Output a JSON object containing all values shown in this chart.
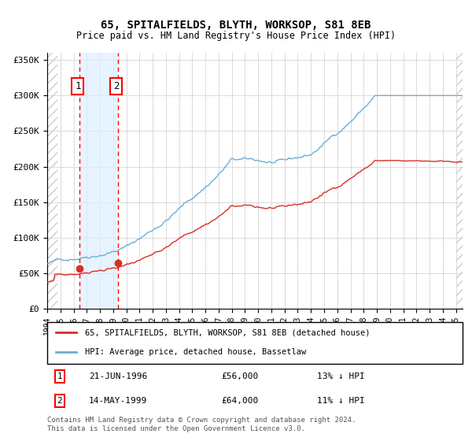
{
  "title1": "65, SPITALFIELDS, BLYTH, WORKSOP, S81 8EB",
  "title2": "Price paid vs. HM Land Registry's House Price Index (HPI)",
  "sale1_date": "21-JUN-1996",
  "sale1_price": 56000,
  "sale1_label": "1",
  "sale1_year": 1996.47,
  "sale2_date": "14-MAY-1999",
  "sale2_price": 64000,
  "sale2_label": "2",
  "sale2_year": 1999.37,
  "legend_line1": "65, SPITALFIELDS, BLYTH, WORKSOP, S81 8EB (detached house)",
  "legend_line2": "HPI: Average price, detached house, Bassetlaw",
  "table_row1": "1    21-JUN-1996    £56,000    13% ↓ HPI",
  "table_row2": "2    14-MAY-1999    £64,000    11% ↓ HPI",
  "footer": "Contains HM Land Registry data © Crown copyright and database right 2024.\nThis data is licensed under the Open Government Licence v3.0.",
  "xmin": 1994.0,
  "xmax": 2025.5,
  "ymin": 0,
  "ymax": 360000,
  "hpi_color": "#6baed6",
  "price_color": "#d73027",
  "sale_marker_color": "#d73027",
  "bg_hatch_color": "#cccccc",
  "sale_shade_color": "#ddeeff",
  "grid_color": "#cccccc",
  "label_bg": "#f0f4f8"
}
